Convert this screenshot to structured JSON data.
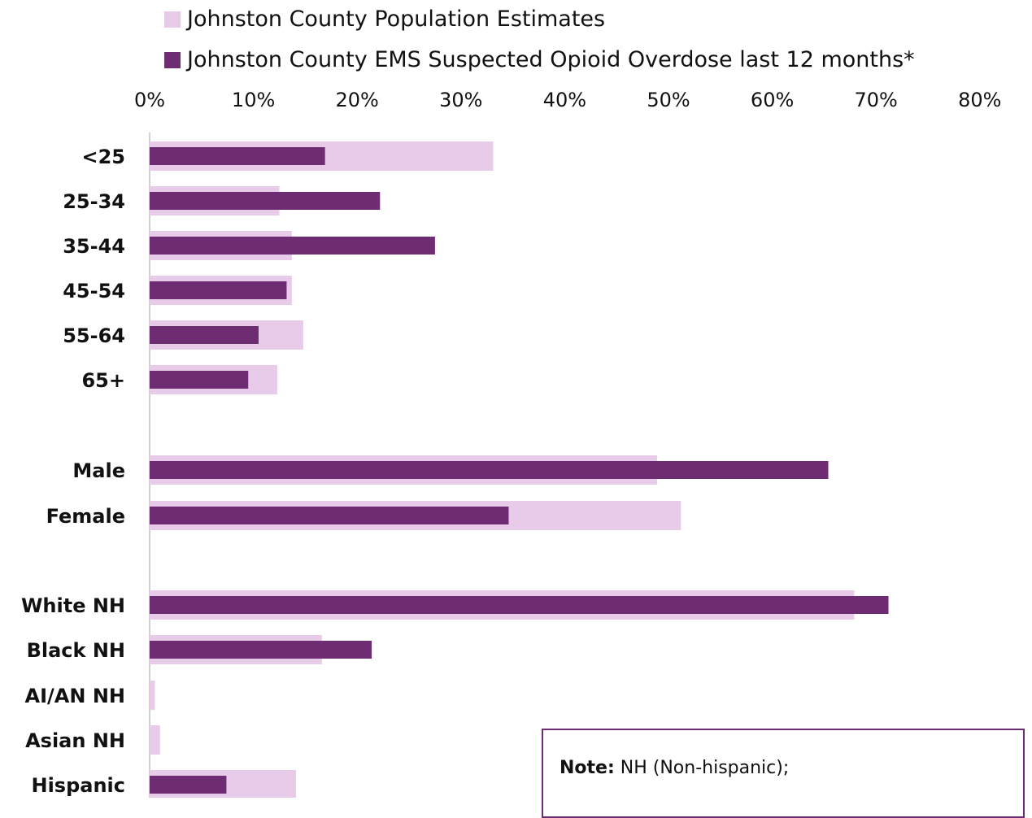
{
  "chart_data": {
    "type": "bar",
    "orientation": "horizontal",
    "title_partial": "",
    "categories": [
      "<25",
      "25-34",
      "35-44",
      "45-54",
      "55-64",
      "65+",
      "Male",
      "Female",
      "White NH",
      "Black NH",
      "AI/AN NH",
      "Asian NH",
      "Hispanic"
    ],
    "groups": [
      [
        "<25",
        "25-34",
        "35-44",
        "45-54",
        "55-64",
        "65+"
      ],
      [
        "Male",
        "Female"
      ],
      [
        "White NH",
        "Black NH",
        "AI/AN NH",
        "Asian NH",
        "Hispanic"
      ]
    ],
    "series": [
      {
        "name": "Johnston County Population Estimates",
        "color": "#e8cbe9",
        "values": [
          33.1,
          12.5,
          13.7,
          13.7,
          14.8,
          12.3,
          48.9,
          51.2,
          67.9,
          16.6,
          0.5,
          1.0,
          14.1
        ]
      },
      {
        "name": "Johnston County EMS Suspected Opioid Overdose last 12 months*",
        "color": "#6e2c73",
        "values": [
          16.9,
          22.2,
          27.5,
          13.2,
          10.5,
          9.5,
          65.4,
          34.6,
          71.2,
          21.4,
          0,
          0,
          7.4
        ]
      }
    ],
    "x_ticks": [
      "0%",
      "10%",
      "20%",
      "30%",
      "40%",
      "50%",
      "60%",
      "70%",
      "80%"
    ],
    "xlim": [
      0,
      80
    ],
    "grid": false,
    "legend_position": "top-left"
  },
  "note": {
    "label": "Note:",
    "text": " NH (Non-hispanic);"
  }
}
